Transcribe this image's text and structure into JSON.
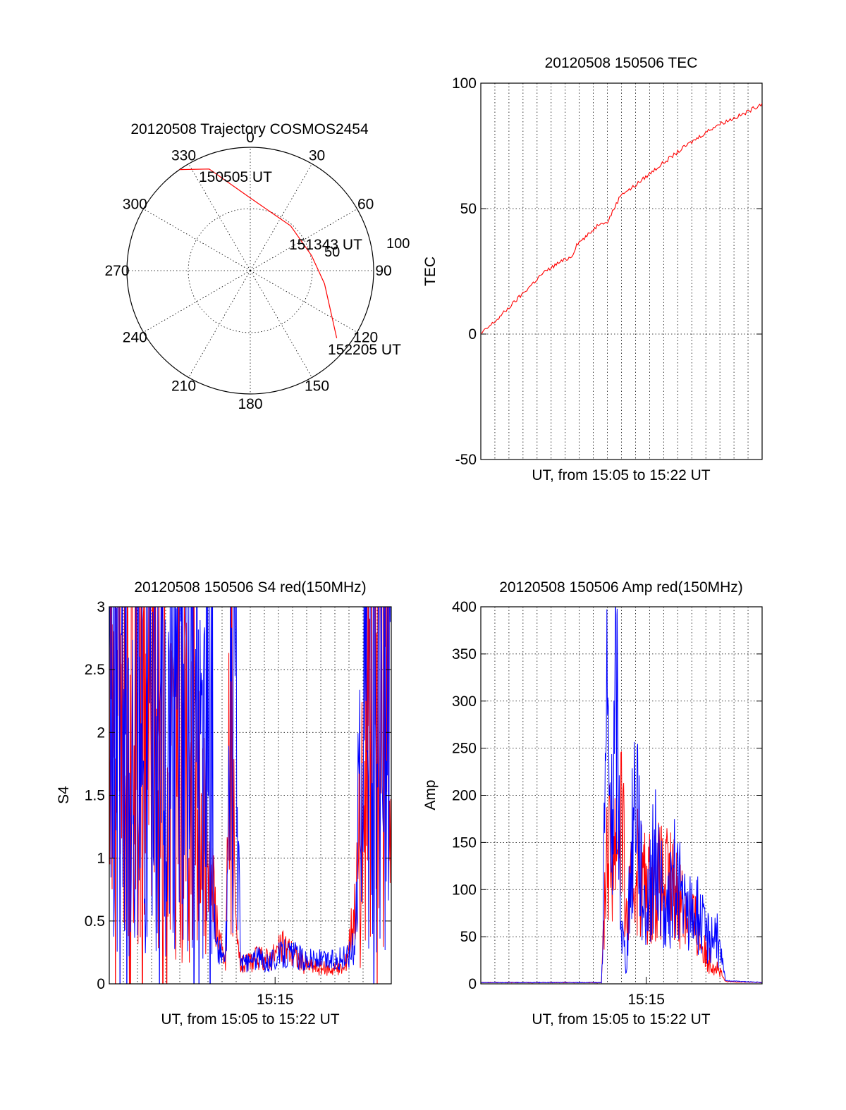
{
  "colors": {
    "primary_series": "#ff0000",
    "secondary_series": "#0000ff",
    "axes": "#000000",
    "background": "#ffffff"
  },
  "chart_data": [
    {
      "type": "polar",
      "title": "20120508 Trajectory COSMOS2454",
      "azimuth_ticks": [
        "0",
        "30",
        "60",
        "90",
        "120",
        "150",
        "180",
        "210",
        "240",
        "270",
        "300",
        "330"
      ],
      "radial_ticks": [
        "50",
        "100"
      ],
      "trajectory": [
        {
          "azimuth_deg": 325,
          "zenith_deg": 90
        },
        {
          "azimuth_deg": 338,
          "zenith_deg": 80
        },
        {
          "azimuth_deg": 0,
          "zenith_deg": 53
        },
        {
          "azimuth_deg": 42,
          "zenith_deg": 44
        },
        {
          "azimuth_deg": 76,
          "zenith_deg": 46
        },
        {
          "azimuth_deg": 100,
          "zenith_deg": 55
        },
        {
          "azimuth_deg": 120,
          "zenith_deg": 69
        },
        {
          "azimuth_deg": 128,
          "zenith_deg": 80
        }
      ],
      "annotations": [
        {
          "text": "150505 UT",
          "azimuth_deg": 335,
          "zenith_deg": 88
        },
        {
          "text": "151343 UT",
          "azimuth_deg": 70,
          "zenith_deg": 44
        },
        {
          "text": "152205 UT",
          "azimuth_deg": 128,
          "zenith_deg": 80
        }
      ],
      "grid": true
    },
    {
      "type": "line",
      "title": "20120508 150506 TEC",
      "xlabel": "UT, from 15:05 to 15:22 UT",
      "ylabel": "TEC",
      "xlim": [
        15.083,
        15.367
      ],
      "ylim": [
        -50,
        100
      ],
      "yticks": [
        "-50",
        "0",
        "50",
        "100"
      ],
      "grid": true,
      "series": [
        {
          "color": "#ff0000",
          "x": [
            15.083,
            15.1,
            15.115,
            15.13,
            15.145,
            15.16,
            15.175,
            15.18,
            15.19,
            15.205,
            15.21,
            15.225,
            15.235,
            15.26,
            15.29,
            15.32,
            15.35,
            15.367
          ],
          "y": [
            0,
            6,
            12,
            18,
            24,
            28,
            31,
            36,
            39,
            45,
            44,
            56,
            58,
            66,
            75,
            83,
            88,
            92
          ]
        }
      ]
    },
    {
      "type": "line",
      "title": "20120508 150506 S4 red(150MHz)",
      "xlabel": "UT, from 15:05 to 15:22 UT",
      "ylabel": "S4",
      "xlim": [
        15.083,
        15.367
      ],
      "ylim": [
        0,
        3
      ],
      "yticks": [
        "0",
        "0.5",
        "1",
        "1.5",
        "2",
        "2.5",
        "3"
      ],
      "xticks": [
        {
          "value": 15.25,
          "label": "15:15"
        }
      ],
      "grid": true,
      "series": [
        {
          "color": "#ff0000",
          "x": [
            15.083,
            15.1,
            15.12,
            15.14,
            15.16,
            15.175,
            15.185,
            15.195,
            15.2,
            15.205,
            15.21,
            15.215,
            15.22,
            15.23,
            15.245,
            15.26,
            15.28,
            15.3,
            15.32,
            15.33,
            15.34,
            15.35,
            15.367
          ],
          "y": [
            2.0,
            2.1,
            2.0,
            1.9,
            1.6,
            1.2,
            0.9,
            0.3,
            0.15,
            2.5,
            0.4,
            0.15,
            0.15,
            0.2,
            0.2,
            0.3,
            0.15,
            0.12,
            0.12,
            0.6,
            1.5,
            2.8,
            3.0
          ]
        },
        {
          "color": "#0000ff",
          "x": [
            15.083,
            15.1,
            15.12,
            15.14,
            15.16,
            15.175,
            15.18,
            15.185,
            15.19,
            15.2,
            15.205,
            15.21,
            15.215,
            15.22,
            15.23,
            15.245,
            15.26,
            15.28,
            15.3,
            15.32,
            15.33,
            15.34,
            15.35,
            15.367
          ],
          "y": [
            2.0,
            2.2,
            2.1,
            2.0,
            2.1,
            2.0,
            1.8,
            1.5,
            0.3,
            0.2,
            1.4,
            2.6,
            0.2,
            0.15,
            0.2,
            0.18,
            0.25,
            0.2,
            0.18,
            0.2,
            0.3,
            2.5,
            1.8,
            2.5
          ]
        }
      ]
    },
    {
      "type": "line",
      "title": "20120508 150506 Amp red(150MHz)",
      "xlabel": "UT, from 15:05 to 15:22 UT",
      "ylabel": "Amp",
      "xlim": [
        15.083,
        15.367
      ],
      "ylim": [
        0,
        400
      ],
      "yticks": [
        "0",
        "50",
        "100",
        "150",
        "200",
        "250",
        "300",
        "350",
        "400"
      ],
      "xticks": [
        {
          "value": 15.25,
          "label": "15:15"
        }
      ],
      "grid": true,
      "series": [
        {
          "color": "#ff0000",
          "x": [
            15.083,
            15.15,
            15.205,
            15.21,
            15.215,
            15.225,
            15.23,
            15.24,
            15.25,
            15.26,
            15.28,
            15.3,
            15.31,
            15.32,
            15.33,
            15.367
          ],
          "y": [
            1,
            1,
            1,
            150,
            130,
            190,
            60,
            130,
            100,
            110,
            100,
            60,
            30,
            20,
            2,
            1
          ]
        },
        {
          "color": "#0000ff",
          "x": [
            15.083,
            15.15,
            15.205,
            15.21,
            15.215,
            15.22,
            15.225,
            15.23,
            15.24,
            15.245,
            15.25,
            15.26,
            15.27,
            15.28,
            15.29,
            15.3,
            15.31,
            15.32,
            15.325,
            15.33,
            15.367
          ],
          "y": [
            1,
            1,
            1,
            280,
            150,
            300,
            60,
            20,
            240,
            110,
            80,
            140,
            60,
            120,
            70,
            80,
            50,
            55,
            30,
            3,
            1
          ]
        }
      ]
    }
  ]
}
